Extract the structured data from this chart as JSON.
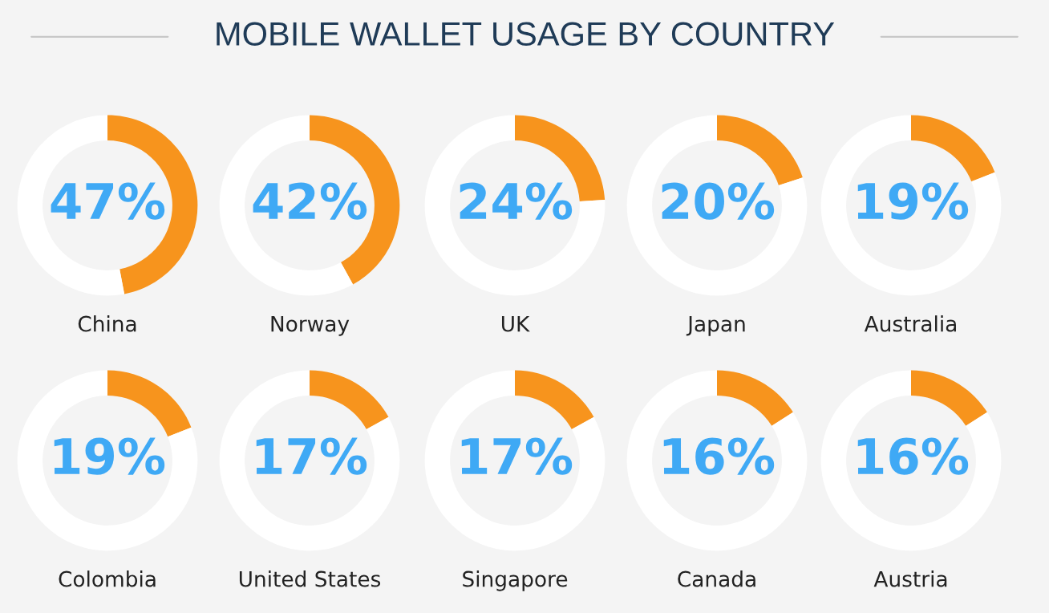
{
  "chart_data": [
    {
      "type": "other",
      "title": "MOBILE WALLET USAGE BY COUNTRY"
    },
    {
      "type": "donut",
      "title": "China",
      "categories": [
        null,
        null
      ],
      "values": [
        47,
        53
      ],
      "colors": [
        "#f7941d",
        "#ffffff"
      ],
      "value_labels": [
        "47%",
        null
      ]
    },
    {
      "type": "donut",
      "title": "Norway",
      "categories": [
        null,
        null
      ],
      "values": [
        42,
        58
      ],
      "colors": [
        "#f7941d",
        "#ffffff"
      ],
      "value_labels": [
        "42%",
        null
      ]
    },
    {
      "type": "donut",
      "title": "UK",
      "categories": [
        null,
        null
      ],
      "values": [
        24,
        76
      ],
      "colors": [
        "#f7941d",
        "#ffffff"
      ],
      "value_labels": [
        "24%",
        null
      ]
    },
    {
      "type": "donut",
      "title": "Japan",
      "categories": [
        null,
        null
      ],
      "values": [
        20,
        80
      ],
      "colors": [
        "#f7941d",
        "#ffffff"
      ],
      "value_labels": [
        "20%",
        null
      ]
    },
    {
      "type": "donut",
      "title": "Australia",
      "categories": [
        null,
        null
      ],
      "values": [
        19,
        81
      ],
      "colors": [
        "#f7941d",
        "#ffffff"
      ],
      "value_labels": [
        "19%",
        null
      ]
    },
    {
      "type": "donut",
      "title": "Colombia",
      "categories": [
        null,
        null
      ],
      "values": [
        19,
        81
      ],
      "colors": [
        "#f7941d",
        "#ffffff"
      ],
      "value_labels": [
        "19%",
        null
      ]
    },
    {
      "type": "donut",
      "title": "United States",
      "categories": [
        null,
        null
      ],
      "values": [
        17,
        83
      ],
      "colors": [
        "#f7941d",
        "#ffffff"
      ],
      "value_labels": [
        "17%",
        null
      ]
    },
    {
      "type": "donut",
      "title": "Singapore",
      "categories": [
        null,
        null
      ],
      "values": [
        17,
        83
      ],
      "colors": [
        "#f7941d",
        "#ffffff"
      ],
      "value_labels": [
        "17%",
        null
      ]
    },
    {
      "type": "donut",
      "title": "Canada",
      "categories": [
        null,
        null
      ],
      "values": [
        16,
        84
      ],
      "colors": [
        "#f7941d",
        "#ffffff"
      ],
      "value_labels": [
        "16%",
        null
      ]
    },
    {
      "type": "donut",
      "title": "Austria",
      "categories": [
        null,
        null
      ],
      "values": [
        16,
        84
      ],
      "colors": [
        "#f7941d",
        "#ffffff"
      ],
      "value_labels": [
        "16%",
        null
      ]
    }
  ]
}
